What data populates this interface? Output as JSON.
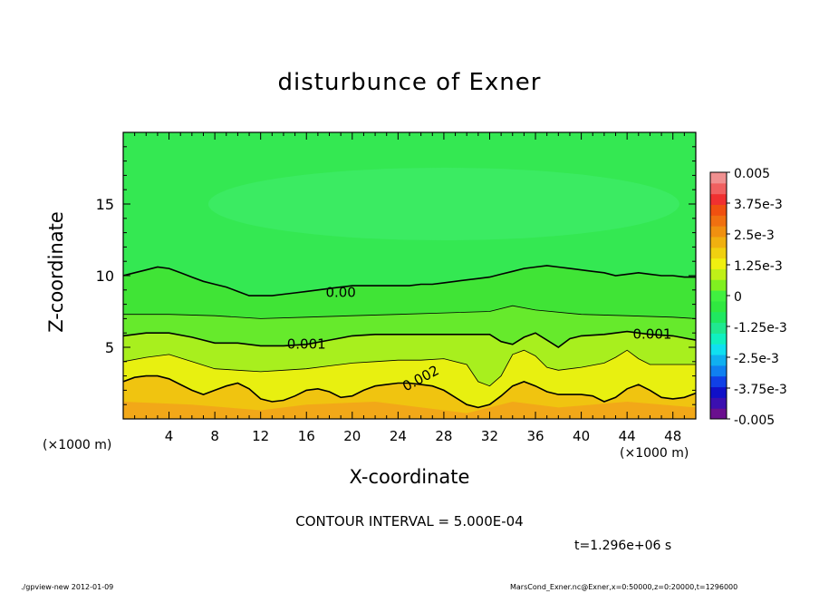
{
  "chart_data": {
    "type": "heatmap",
    "title": "disturbunce of Exner",
    "xlabel": "X-coordinate",
    "ylabel": "Z-coordinate",
    "x_unit": "(×1000 m)",
    "y_unit": "(×1000 m)",
    "xlim": [
      0,
      50
    ],
    "ylim": [
      0,
      20
    ],
    "x_ticks": [
      "4",
      "8",
      "12",
      "16",
      "20",
      "24",
      "28",
      "32",
      "36",
      "40",
      "44",
      "48"
    ],
    "y_ticks": [
      "5",
      "10",
      "15"
    ],
    "colorbar": {
      "labels": [
        "0.005",
        "3.75e-3",
        "2.5e-3",
        "1.25e-3",
        "0",
        "-1.25e-3",
        "-2.5e-3",
        "-3.75e-3",
        "-0.005"
      ],
      "range": [
        -0.005,
        0.005
      ],
      "colors": [
        "#6a0f8e",
        "#3b0fb0",
        "#1010c8",
        "#1040e6",
        "#1080f0",
        "#10b0f0",
        "#10e0f0",
        "#10f0c0",
        "#20e890",
        "#20e860",
        "#30e840",
        "#40f040",
        "#80f020",
        "#c0f018",
        "#f0f010",
        "#f0d010",
        "#f0b010",
        "#f09010",
        "#f07010",
        "#f05010",
        "#f03030",
        "#f06060",
        "#f09090"
      ]
    },
    "contours": [
      {
        "label": "0.00",
        "value": 0.0,
        "x": [
          0,
          1,
          2,
          3,
          4,
          5,
          6,
          7,
          8,
          9,
          10,
          11,
          12,
          13,
          14,
          15,
          16,
          17,
          18,
          19,
          20,
          21,
          22,
          23,
          24,
          25,
          26,
          27,
          28,
          29,
          30,
          31,
          32,
          33,
          34,
          35,
          36,
          37,
          38,
          39,
          40,
          41,
          42,
          43,
          44,
          45,
          46,
          47,
          48,
          49,
          50
        ],
        "z": [
          10.0,
          10.2,
          10.4,
          10.6,
          10.5,
          10.2,
          9.9,
          9.6,
          9.4,
          9.2,
          8.9,
          8.6,
          8.6,
          8.6,
          8.7,
          8.8,
          8.9,
          9.0,
          9.1,
          9.2,
          9.3,
          9.3,
          9.3,
          9.3,
          9.3,
          9.3,
          9.4,
          9.4,
          9.5,
          9.6,
          9.7,
          9.8,
          9.9,
          10.1,
          10.3,
          10.5,
          10.6,
          10.7,
          10.6,
          10.5,
          10.4,
          10.3,
          10.2,
          10.0,
          10.1,
          10.2,
          10.1,
          10.0,
          10.0,
          9.9,
          9.9
        ]
      },
      {
        "label": "",
        "value": 0.0005,
        "x": [
          0,
          4,
          8,
          12,
          16,
          20,
          24,
          28,
          32,
          34,
          36,
          40,
          44,
          48,
          50
        ],
        "z": [
          7.3,
          7.3,
          7.2,
          7.0,
          7.1,
          7.2,
          7.3,
          7.4,
          7.5,
          7.9,
          7.6,
          7.3,
          7.2,
          7.1,
          7.0
        ]
      },
      {
        "label": "0.001",
        "value": 0.001,
        "x": [
          0,
          2,
          4,
          6,
          8,
          10,
          12,
          14,
          16,
          18,
          20,
          22,
          24,
          26,
          28,
          30,
          32,
          33,
          34,
          35,
          36,
          37,
          38,
          39,
          40,
          42,
          44,
          46,
          48,
          50
        ],
        "z": [
          5.8,
          6.0,
          6.0,
          5.7,
          5.3,
          5.3,
          5.1,
          5.1,
          5.2,
          5.5,
          5.8,
          5.9,
          5.9,
          5.9,
          5.9,
          5.9,
          5.9,
          5.4,
          5.2,
          5.7,
          6.0,
          5.5,
          5.0,
          5.6,
          5.8,
          5.9,
          6.1,
          5.9,
          5.8,
          5.5
        ]
      },
      {
        "label": "",
        "value": 0.0015,
        "x": [
          0,
          2,
          4,
          6,
          8,
          10,
          12,
          14,
          16,
          18,
          20,
          22,
          24,
          26,
          28,
          30,
          31,
          32,
          33,
          34,
          35,
          36,
          37,
          38,
          40,
          42,
          43,
          44,
          45,
          46,
          48,
          50
        ],
        "z": [
          4.0,
          4.3,
          4.5,
          4.0,
          3.5,
          3.4,
          3.3,
          3.4,
          3.5,
          3.7,
          3.9,
          4.0,
          4.1,
          4.1,
          4.2,
          3.8,
          2.6,
          2.3,
          3.0,
          4.5,
          4.8,
          4.4,
          3.6,
          3.4,
          3.6,
          3.9,
          4.3,
          4.8,
          4.2,
          3.8,
          3.8,
          3.8
        ]
      },
      {
        "label": "0.002",
        "value": 0.002,
        "x": [
          0,
          1,
          2,
          3,
          4,
          5,
          6,
          7,
          8,
          9,
          10,
          11,
          12,
          13,
          14,
          15,
          16,
          17,
          18,
          19,
          20,
          21,
          22,
          23,
          24,
          25,
          26,
          27,
          28,
          29,
          30,
          31,
          32,
          33,
          34,
          35,
          36,
          37,
          38,
          39,
          40,
          41,
          42,
          43,
          44,
          45,
          46,
          47,
          48,
          49,
          50
        ],
        "z": [
          2.6,
          2.9,
          3.0,
          3.0,
          2.8,
          2.4,
          2.0,
          1.7,
          2.0,
          2.3,
          2.5,
          2.1,
          1.4,
          1.2,
          1.3,
          1.6,
          2.0,
          2.1,
          1.9,
          1.5,
          1.6,
          2.0,
          2.3,
          2.4,
          2.5,
          2.5,
          2.4,
          2.3,
          2.0,
          1.5,
          1.0,
          0.8,
          1.0,
          1.6,
          2.3,
          2.6,
          2.3,
          1.9,
          1.7,
          1.7,
          1.7,
          1.6,
          1.2,
          1.5,
          2.1,
          2.4,
          2.0,
          1.5,
          1.4,
          1.5,
          1.8
        ]
      }
    ]
  },
  "text": {
    "contour_interval": "CONTOUR INTERVAL = 5.000E-04",
    "time": "t=1.296e+06 s",
    "footer_left": "./gpview-new   2012-01-09",
    "footer_right": "MarsCond_Exner.nc@Exner,x=0:50000,z=0:20000,t=1296000"
  }
}
